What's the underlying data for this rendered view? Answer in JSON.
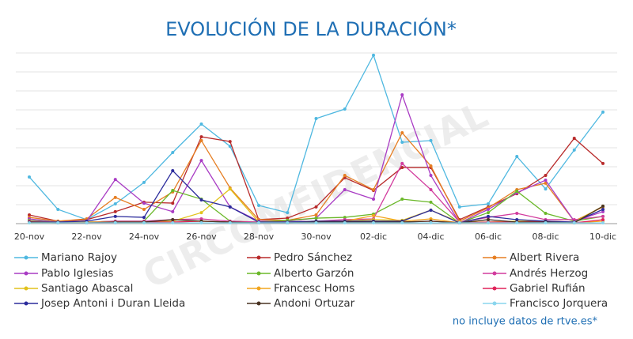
{
  "chart_data": {
    "type": "line",
    "title": "EVOLUCIÓN DE LA DURACIÓN*",
    "note": "no incluye datos de rtve.es*",
    "watermark": "CIRCOMFIDENCIAL",
    "categories": [
      "20-nov",
      null,
      "22-nov",
      null,
      "24-nov",
      null,
      "26-nov",
      null,
      "28-nov",
      null,
      "30-nov",
      null,
      "02-dic",
      null,
      "04-dic",
      null,
      "06-dic",
      null,
      "08-dic",
      null,
      "10-dic"
    ],
    "ylim": [
      0,
      9
    ],
    "yticks": [
      0,
      1,
      2,
      3,
      4,
      5,
      6,
      7,
      8,
      9
    ],
    "grid": true,
    "series": [
      {
        "name": "Mariano Rajoy",
        "color": "#4fb8e0",
        "values": [
          2.46,
          0.75,
          0.21,
          1.04,
          2.17,
          3.75,
          5.25,
          4.08,
          0.96,
          0.58,
          5.54,
          6.04,
          8.88,
          4.29,
          4.38,
          0.88,
          1.04,
          3.54,
          1.83,
          3.88,
          5.88
        ]
      },
      {
        "name": "Pedro Sánchez",
        "color": "#b82a2a",
        "values": [
          0.46,
          0.13,
          0.21,
          0.63,
          1.13,
          1.08,
          4.58,
          4.33,
          0.21,
          0.29,
          0.88,
          2.42,
          1.75,
          2.96,
          2.96,
          0.21,
          0.88,
          1.58,
          2.54,
          4.5,
          3.17
        ]
      },
      {
        "name": "Albert Rivera",
        "color": "#e67e22",
        "values": [
          0.33,
          0.13,
          0.25,
          1.38,
          0.75,
          1.67,
          4.38,
          1.88,
          0.21,
          0.17,
          0.46,
          2.54,
          1.79,
          4.79,
          3.04,
          0.13,
          0.83,
          1.79,
          2.13,
          0.13,
          0.88
        ]
      },
      {
        "name": "Pablo Iglesias",
        "color": "#a93cc4",
        "values": [
          0.25,
          0.08,
          0.13,
          2.33,
          1.08,
          0.63,
          3.33,
          0.88,
          0.13,
          0.13,
          0.29,
          1.79,
          1.29,
          6.79,
          2.54,
          0.04,
          0.75,
          1.63,
          2.29,
          0.13,
          0.63
        ]
      },
      {
        "name": "Alberto Garzón",
        "color": "#6bb82a",
        "values": [
          0.17,
          0.08,
          0.08,
          0.13,
          0.13,
          1.75,
          1.29,
          0.13,
          0.08,
          0.17,
          0.29,
          0.33,
          0.5,
          1.29,
          1.13,
          0.04,
          0.58,
          1.71,
          0.54,
          0.13,
          0.38
        ]
      },
      {
        "name": "Andrés Herzog",
        "color": "#d23c9e",
        "values": [
          0.13,
          0.08,
          0.08,
          0.13,
          0.13,
          0.21,
          0.25,
          0.13,
          0.08,
          0.08,
          0.13,
          0.21,
          0.25,
          3.17,
          1.79,
          0.08,
          0.33,
          0.54,
          0.21,
          0.21,
          0.38
        ]
      },
      {
        "name": "Santiago Abascal",
        "color": "#e2c21c",
        "values": [
          0.08,
          0.08,
          0.08,
          0.08,
          0.08,
          0.13,
          0.58,
          1.83,
          0.08,
          0.08,
          0.13,
          0.13,
          0.21,
          0.17,
          0.71,
          0.08,
          0.08,
          0.13,
          0.13,
          0.08,
          0.92
        ]
      },
      {
        "name": "Francesc Homs",
        "color": "#f2a51e",
        "values": [
          0.04,
          0.04,
          0.04,
          0.04,
          0.04,
          0.08,
          0.13,
          0.08,
          0.04,
          0.04,
          0.08,
          0.13,
          0.42,
          0.13,
          0.25,
          0.04,
          0.04,
          0.08,
          0.08,
          0.04,
          0.13
        ]
      },
      {
        "name": "Gabriel Rufián",
        "color": "#e0245a",
        "values": [
          0.08,
          0.04,
          0.04,
          0.04,
          0.08,
          0.08,
          0.13,
          0.08,
          0.04,
          0.04,
          0.08,
          0.08,
          0.13,
          0.08,
          0.13,
          0.04,
          0.08,
          0.08,
          0.13,
          0.04,
          0.21
        ]
      },
      {
        "name": "Josep Antoni i Duran Lleida",
        "color": "#2c2c9c",
        "values": [
          0.08,
          0.08,
          0.13,
          0.38,
          0.33,
          2.79,
          1.25,
          0.88,
          0.08,
          0.08,
          0.13,
          0.13,
          0.13,
          0.13,
          0.71,
          0.04,
          0.38,
          0.21,
          0.13,
          0.08,
          0.75
        ]
      },
      {
        "name": "Andoni Ortuzar",
        "color": "#4a3322",
        "values": [
          0.08,
          0.04,
          0.04,
          0.08,
          0.08,
          0.21,
          0.13,
          0.08,
          0.04,
          0.04,
          0.08,
          0.08,
          0.08,
          0.08,
          0.13,
          0.04,
          0.21,
          0.08,
          0.08,
          0.04,
          0.92
        ]
      },
      {
        "name": "Francisco Jorquera",
        "color": "#8ad6ee",
        "values": [
          0.04,
          0.04,
          0.04,
          0.04,
          0.04,
          0.04,
          0.04,
          0.04,
          0.04,
          0.04,
          0.04,
          0.04,
          0.04,
          0.04,
          0.04,
          0.04,
          0.04,
          0.04,
          0.04,
          0.04,
          0.04
        ]
      }
    ]
  }
}
